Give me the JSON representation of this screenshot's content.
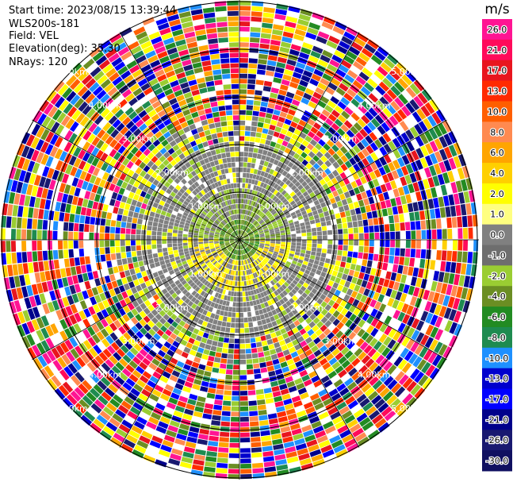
{
  "info": {
    "start_time": "Start time: 2023/08/15 13:39:44",
    "instrument": "WLS200s-181",
    "field": "Field: VEL",
    "elevation": "Elevation(deg): 35.30",
    "nrays": "NRays: 120"
  },
  "chart_data": {
    "type": "heatmap",
    "projection": "polar-ppi",
    "field": "VEL",
    "nrays": 120,
    "range_rings": [
      "1.00km",
      "2.00km",
      "3.00km",
      "4.00km",
      "5.00km"
    ],
    "colorbar": {
      "unit": "m/s",
      "ticks": [
        "26.0",
        "21.0",
        "17.0",
        "13.0",
        "10.0",
        "8.0",
        "6.0",
        "4.0",
        "2.0",
        "1.0",
        "0.0",
        "-1.0",
        "-2.0",
        "-4.0",
        "-6.0",
        "-8.0",
        "-10.0",
        "-13.0",
        "-17.0",
        "-21.0",
        "-26.0",
        "-30.0"
      ],
      "colors": [
        "#ff1493",
        "#ff0a5a",
        "#e8151e",
        "#ff2a00",
        "#ff5e00",
        "#ff8a50",
        "#ffa500",
        "#ffd000",
        "#ffff00",
        "#ffff80",
        "#808080",
        "#6e6e6e",
        "#9acd32",
        "#6b8e23",
        "#228b22",
        "#1e8b50",
        "#1e90ff",
        "#0000cd",
        "#0000ff",
        "#00008b",
        "#191970",
        "#101060"
      ]
    }
  }
}
